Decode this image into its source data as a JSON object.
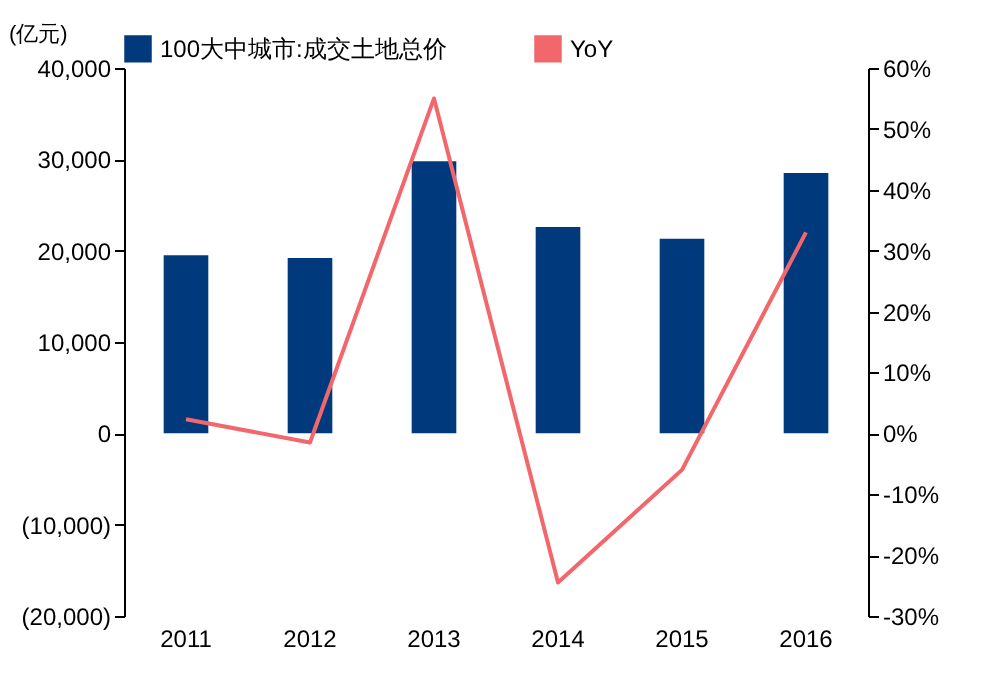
{
  "chart_data": {
    "type": "bar",
    "ylabel": "(亿元)",
    "categories": [
      "2011",
      "2012",
      "2013",
      "2014",
      "2015",
      "2016"
    ],
    "series": [
      {
        "name": "100大中城市:成交土地总价",
        "color": "#003a7d",
        "values": [
          19500,
          19200,
          29800,
          22600,
          21300,
          28500
        ]
      },
      {
        "name": "YoY",
        "type": "line",
        "axis": "y2",
        "color": "#f2676b",
        "values": [
          2.3,
          -1.5,
          55,
          -24.5,
          -6,
          33
        ]
      }
    ],
    "ylim": [
      -20000,
      40000
    ],
    "yticks": [
      {
        "value": -20000,
        "label": "(20,000)"
      },
      {
        "value": -10000,
        "label": "(10,000)"
      },
      {
        "value": 0,
        "label": "0"
      },
      {
        "value": 10000,
        "label": "10,000"
      },
      {
        "value": 20000,
        "label": "20,000"
      },
      {
        "value": 30000,
        "label": "30,000"
      },
      {
        "value": 40000,
        "label": "40,000"
      }
    ],
    "y2lim": [
      -30,
      60
    ],
    "y2ticks": [
      {
        "value": -30,
        "label": "-30%"
      },
      {
        "value": -20,
        "label": "-20%"
      },
      {
        "value": -10,
        "label": "-10%"
      },
      {
        "value": 0,
        "label": "0%"
      },
      {
        "value": 10,
        "label": "10%"
      },
      {
        "value": 20,
        "label": "20%"
      },
      {
        "value": 30,
        "label": "30%"
      },
      {
        "value": 40,
        "label": "40%"
      },
      {
        "value": 50,
        "label": "50%"
      },
      {
        "value": 60,
        "label": "60%"
      }
    ],
    "legend": "top",
    "grid": false
  }
}
